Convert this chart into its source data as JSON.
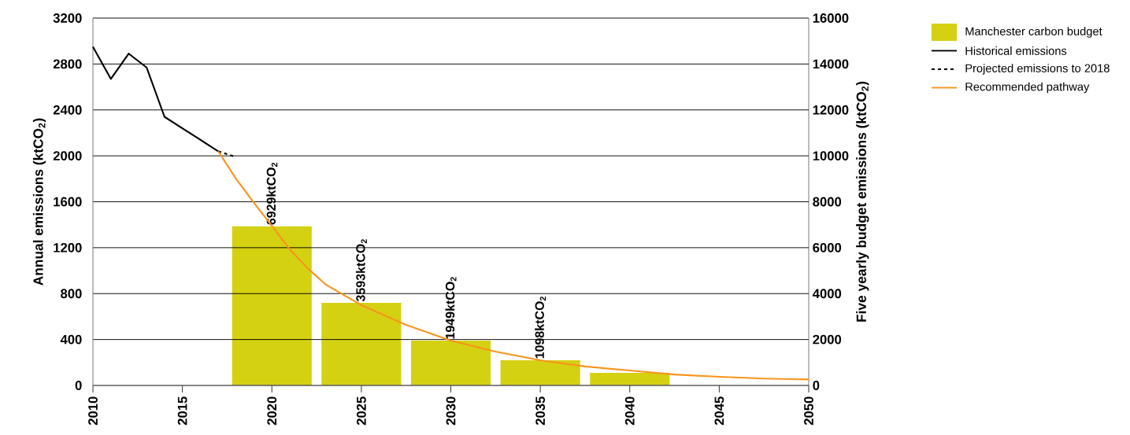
{
  "chart_data": {
    "type": "line",
    "xlabel": null,
    "ylabel": "Annual emissions (ktCO$_{2}$)",
    "y2label": "Five yearly budget emissions (ktCO$_{2}$)",
    "xlim": [
      2010,
      2050
    ],
    "xticks": [
      2010,
      2015,
      2020,
      2025,
      2030,
      2035,
      2040,
      2045,
      2050
    ],
    "ylim": [
      0,
      3200
    ],
    "yticks": [
      0,
      400,
      800,
      1200,
      1600,
      2000,
      2400,
      2800,
      3200
    ],
    "y2lim": [
      0,
      16000
    ],
    "y2ticks": [
      0,
      2000,
      4000,
      6000,
      8000,
      10000,
      12000,
      14000,
      16000
    ],
    "grid": "y",
    "legend": "top right",
    "series": [
      {
        "name": "Manchester carbon budget",
        "type": "bar",
        "axis": "y2",
        "color": "#d4d112",
        "x": [
          2020,
          2025,
          2030,
          2035,
          2040
        ],
        "values": [
          6929,
          3593,
          1949,
          1098,
          550
        ],
        "value_labels": [
          "6929ktCO$_{2}$",
          "3593ktCO$_{2}$",
          "1949ktCO$_{2}$",
          "1098ktCO$_{2}$",
          null
        ]
      },
      {
        "name": "Historical emissions",
        "line_style": "solid",
        "color": "#000000",
        "x": [
          2010,
          2011,
          2012,
          2013,
          2014,
          2015,
          2016,
          2017
        ],
        "values": [
          2950,
          2670,
          2890,
          2770,
          2340,
          2240,
          2140,
          2040
        ]
      },
      {
        "name": "Projected emissions to 2018",
        "line_style": "dashed",
        "color": "#000000",
        "x": [
          2017,
          2018
        ],
        "values": [
          2040,
          1990
        ]
      },
      {
        "name": "Recommended pathway",
        "line_style": "solid",
        "color": "#f7941d",
        "x": [
          2017,
          2018,
          2019,
          2020,
          2021,
          2022,
          2023,
          2025,
          2027.5,
          2030,
          2032.5,
          2035,
          2037.5,
          2040,
          2042.5,
          2045,
          2047.5,
          2050
        ],
        "values": [
          2040,
          1800,
          1590,
          1390,
          1185,
          1020,
          880,
          700,
          527,
          390,
          295,
          219,
          165,
          130,
          95,
          75,
          60,
          52
        ]
      }
    ]
  }
}
